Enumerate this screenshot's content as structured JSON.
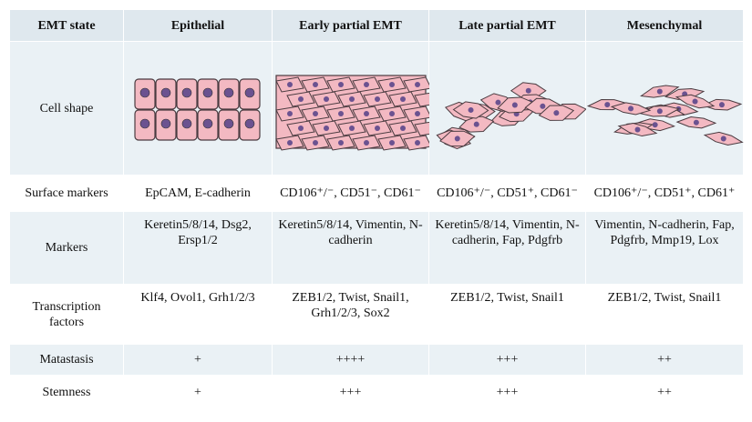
{
  "table": {
    "header": [
      "EMT state",
      "Epithelial",
      "Early partial EMT",
      "Late partial EMT",
      "Mesenchymal"
    ],
    "rows": [
      [
        "Cell shape"
      ],
      [
        "Surface markers",
        "EpCAM, E-cadherin",
        "CD106⁺/⁻, CD51⁻, CD61⁻",
        "CD106⁺/⁻, CD51⁺, CD61⁻",
        "CD106⁺/⁻, CD51⁺, CD61⁺"
      ],
      [
        "Markers",
        "Keretin5/8/14, Dsg2, Ersp1/2",
        "Keretin5/8/14, Vimentin, N-cadherin",
        "Keretin5/8/14, Vimentin, N-cadherin, Fap, Pdgfrb",
        "Vimentin, N-cadherin, Fap, Pdgfrb, Mmp19, Lox"
      ],
      [
        "Transcription factors",
        "Klf4, Ovol1, Grh1/2/3",
        "ZEB1/2, Twist, Snail1, Grh1/2/3, Sox2",
        "ZEB1/2, Twist, Snail1",
        "ZEB1/2, Twist, Snail1"
      ],
      [
        "Matastasis",
        "+",
        "++++",
        "+++",
        "++"
      ],
      [
        "Stemness",
        "+",
        "+++",
        "+++",
        "++"
      ]
    ]
  }
}
